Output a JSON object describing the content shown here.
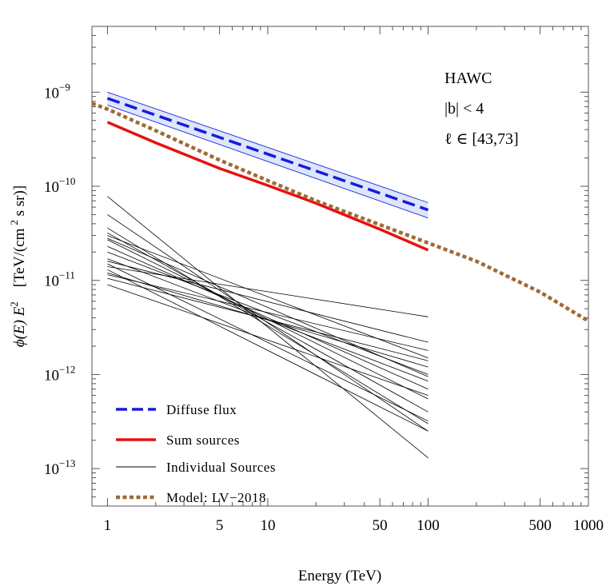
{
  "chart_data": {
    "type": "line",
    "xscale": "log",
    "yscale": "log",
    "xlim": [
      0.8,
      1000
    ],
    "ylim": [
      4e-14,
      5e-09
    ],
    "xlabel": "Energy (TeV)",
    "ylabel": {
      "base": "ϕ(E) E",
      "base_sup": "2",
      "units_open": "[TeV/(cm",
      "units_sup": "2",
      "units_close": " s sr)]"
    },
    "x_ticks": [
      {
        "value": 1,
        "label": "1"
      },
      {
        "value": 5,
        "label": "5"
      },
      {
        "value": 10,
        "label": "10"
      },
      {
        "value": 50,
        "label": "50"
      },
      {
        "value": 100,
        "label": "100"
      },
      {
        "value": 500,
        "label": "500"
      },
      {
        "value": 1000,
        "label": "1000"
      }
    ],
    "x_minor_ticks": [
      2,
      3,
      4,
      6,
      7,
      8,
      9,
      20,
      30,
      40,
      60,
      70,
      80,
      90,
      200,
      300,
      400,
      600,
      700,
      800,
      900
    ],
    "y_ticks": [
      {
        "value": 1e-13,
        "mantissa": "10",
        "exponent": "−13"
      },
      {
        "value": 1e-12,
        "mantissa": "10",
        "exponent": "−12"
      },
      {
        "value": 1e-11,
        "mantissa": "10",
        "exponent": "−11"
      },
      {
        "value": 1e-10,
        "mantissa": "10",
        "exponent": "−10"
      },
      {
        "value": 1e-09,
        "mantissa": "10",
        "exponent": "−9"
      }
    ],
    "annotations": [
      "HAWC",
      "|b| < 4",
      "ℓ ∈ [43,73]"
    ],
    "diffuse_band": {
      "color": "#1f2fdc",
      "fill": "#dde6fb",
      "x": [
        1,
        100
      ],
      "lower": [
        7.3e-10,
        4.6e-11
      ],
      "upper": [
        1e-09,
        6.7e-11
      ]
    },
    "series": [
      {
        "name": "Diffuse flux",
        "style": "dashed",
        "color": "#1a1adc",
        "x": [
          1,
          100
        ],
        "y": [
          8.6e-10,
          5.6e-11
        ]
      },
      {
        "name": "Sum sources",
        "style": "solid",
        "color": "#e81010",
        "x": [
          1,
          2,
          5,
          10,
          20,
          50,
          100
        ],
        "y": [
          4.8e-10,
          2.9e-10,
          1.55e-10,
          1.02e-10,
          6.6e-11,
          3.5e-11,
          2.1e-11
        ]
      },
      {
        "name": "Model: LV-2018",
        "style": "dotted",
        "color": "#a06a35",
        "x": [
          0.8,
          1,
          2,
          5,
          10,
          20,
          50,
          100,
          200,
          500,
          1000
        ],
        "y": [
          7.6e-10,
          6.6e-10,
          3.9e-10,
          1.9e-10,
          1.15e-10,
          7e-11,
          3.9e-11,
          2.5e-11,
          1.6e-11,
          7.5e-12,
          3.7e-12
        ]
      }
    ],
    "individual_sources": {
      "name": "Individual Sources",
      "color": "#000000",
      "x": [
        1,
        100
      ],
      "lines": [
        [
          7.8e-11,
          1.3e-13
        ],
        [
          5e-11,
          2.5e-13
        ],
        [
          3.6e-11,
          3e-13
        ],
        [
          3.2e-11,
          4e-13
        ],
        [
          3e-11,
          1.5e-12
        ],
        [
          2.8e-11,
          9.5e-13
        ],
        [
          2.7e-11,
          5.5e-13
        ],
        [
          2.3e-11,
          7e-13
        ],
        [
          2e-11,
          1e-12
        ],
        [
          1.7e-11,
          8.5e-13
        ],
        [
          1.6e-11,
          2.2e-12
        ],
        [
          1.5e-11,
          3.2e-13
        ],
        [
          1.4e-11,
          4.1e-12
        ],
        [
          1.3e-11,
          2.5e-13
        ],
        [
          1.2e-11,
          1.2e-12
        ],
        [
          1.15e-11,
          1.8e-12
        ],
        [
          1.05e-11,
          1.4e-12
        ],
        [
          9e-12,
          6e-13
        ]
      ]
    },
    "legend": {
      "position": "lower-left",
      "entries": [
        {
          "label": "Diffuse flux",
          "style": "dashed",
          "color": "#1a1adc"
        },
        {
          "label": "Sum sources",
          "style": "solid",
          "color": "#e81010"
        },
        {
          "label": "Individual Sources",
          "style": "thin",
          "color": "#000000"
        },
        {
          "label": "Model: LV−2018",
          "style": "dotted",
          "color": "#a06a35"
        }
      ]
    }
  }
}
